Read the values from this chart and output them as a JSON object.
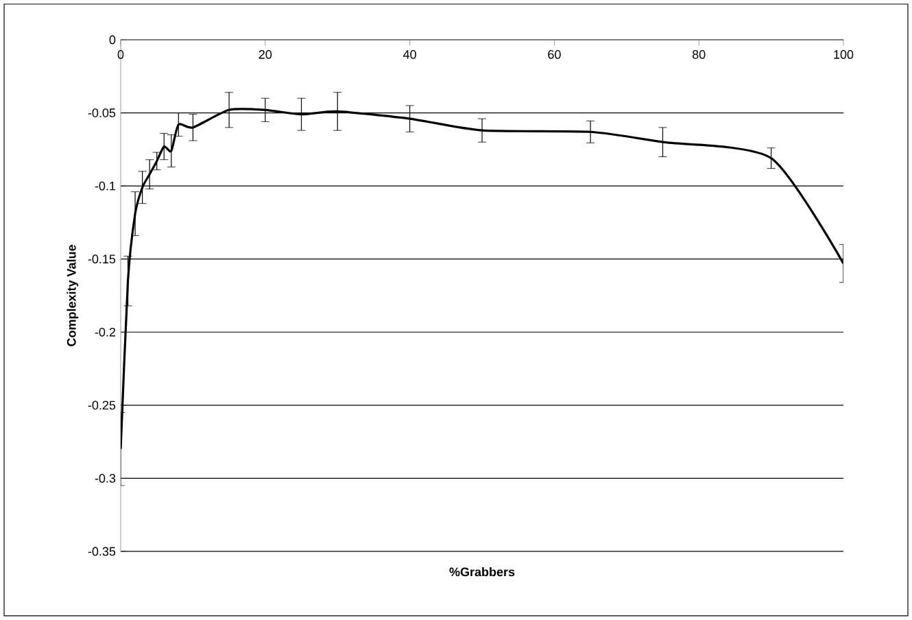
{
  "chart_data": {
    "type": "line",
    "xlabel": "%Grabbers",
    "ylabel": "Complexity Value",
    "x": [
      0,
      1,
      2,
      3,
      4,
      5,
      6,
      7,
      8,
      10,
      15,
      20,
      25,
      30,
      40,
      50,
      65,
      75,
      90,
      100
    ],
    "series": [
      {
        "color": "#000000",
        "values": [
          -0.28,
          -0.165,
          -0.119,
          -0.101,
          -0.092,
          -0.083,
          -0.073,
          -0.076,
          -0.058,
          -0.06,
          -0.048,
          -0.048,
          -0.051,
          -0.049,
          -0.054,
          -0.062,
          -0.063,
          -0.07,
          -0.081,
          -0.153
        ],
        "errors": [
          0.025,
          0.017,
          0.015,
          0.011,
          0.01,
          0.006,
          0.009,
          0.011,
          0.008,
          0.009,
          0.012,
          0.008,
          0.011,
          0.013,
          0.009,
          0.008,
          0.0075,
          0.01,
          0.007,
          0.013
        ]
      }
    ],
    "xlim": [
      0,
      100
    ],
    "ylim": [
      -0.35,
      0
    ],
    "xticks": [
      0,
      20,
      40,
      60,
      80,
      100
    ],
    "yticks": [
      0,
      -0.05,
      -0.1,
      -0.15,
      -0.2,
      -0.25,
      -0.3,
      -0.35
    ],
    "grid": "y",
    "marker": "none",
    "line_style": "solid"
  }
}
